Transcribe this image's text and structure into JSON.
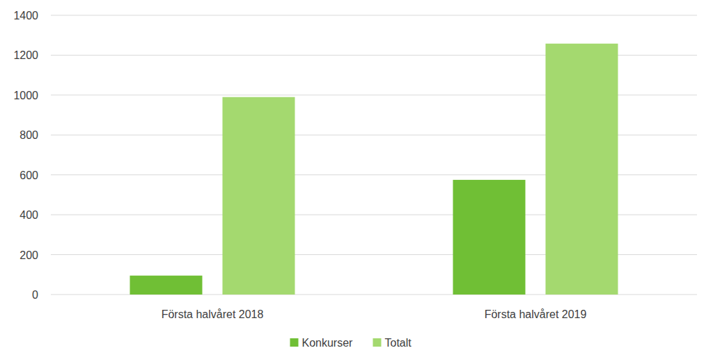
{
  "chart_data": {
    "type": "bar",
    "categories": [
      "Första halvåret 2018",
      "Första halvåret 2019"
    ],
    "series": [
      {
        "name": "Konkurser",
        "color": "#70bf35",
        "values": [
          95,
          575
        ]
      },
      {
        "name": "Totalt",
        "color": "#a4d96f",
        "values": [
          990,
          1258
        ]
      }
    ],
    "ylim": [
      0,
      1400
    ],
    "yticks": [
      0,
      200,
      400,
      600,
      800,
      1000,
      1200,
      1400
    ],
    "grid": true,
    "legend": "bottom"
  }
}
